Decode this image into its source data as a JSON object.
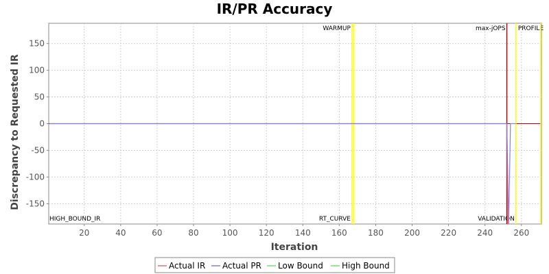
{
  "chart_data": {
    "type": "line",
    "title": "IR/PR Accuracy",
    "xlabel": "Iteration",
    "ylabel": "Discrepancy to Requested IR",
    "xlim": [
      0.5,
      271
    ],
    "ylim": [
      -188,
      188
    ],
    "x_ticks": [
      20,
      40,
      60,
      80,
      100,
      120,
      140,
      160,
      180,
      200,
      220,
      240,
      260
    ],
    "y_ticks": [
      150,
      100,
      50,
      0,
      -50,
      -100,
      -150
    ],
    "grid": true,
    "legend_position": "bottom",
    "series": [
      {
        "name": "Actual IR",
        "color": "#e07080",
        "x": [
          1,
          252,
          252.5,
          253
        ],
        "y": [
          0,
          0,
          -188,
          -188
        ]
      },
      {
        "name": "Actual PR",
        "color": "#8080e0",
        "x": [
          1,
          252,
          253,
          254,
          255,
          256,
          257
        ],
        "y": [
          0,
          0,
          -188,
          0,
          0,
          0,
          0
        ]
      },
      {
        "name": "Low Bound",
        "color": "#70e070",
        "x": [],
        "y": []
      },
      {
        "name": "High Bound",
        "color": "#70e070",
        "x": [],
        "y": []
      }
    ],
    "vertical_markers": [
      {
        "x": 167,
        "color": "#ffff00",
        "label_top": "WARMUP",
        "label_bottom": "RT_CURVE"
      },
      {
        "x": 168,
        "color": "#ffff00",
        "label_top": "",
        "label_bottom": ""
      },
      {
        "x": 252,
        "color": "#c00000",
        "label_top": "max-jOPS",
        "label_bottom": ""
      },
      {
        "x": 257,
        "color": "#ffff00",
        "label_top": "PROFILE",
        "label_bottom": "VALIDATION"
      },
      {
        "x": 271,
        "color": "#ffff00",
        "label_top": "",
        "label_bottom": ""
      }
    ],
    "horizontal_markers": [
      {
        "y": 0,
        "color": "#c00000"
      }
    ],
    "corner_label": "HIGH_BOUND_IR"
  }
}
